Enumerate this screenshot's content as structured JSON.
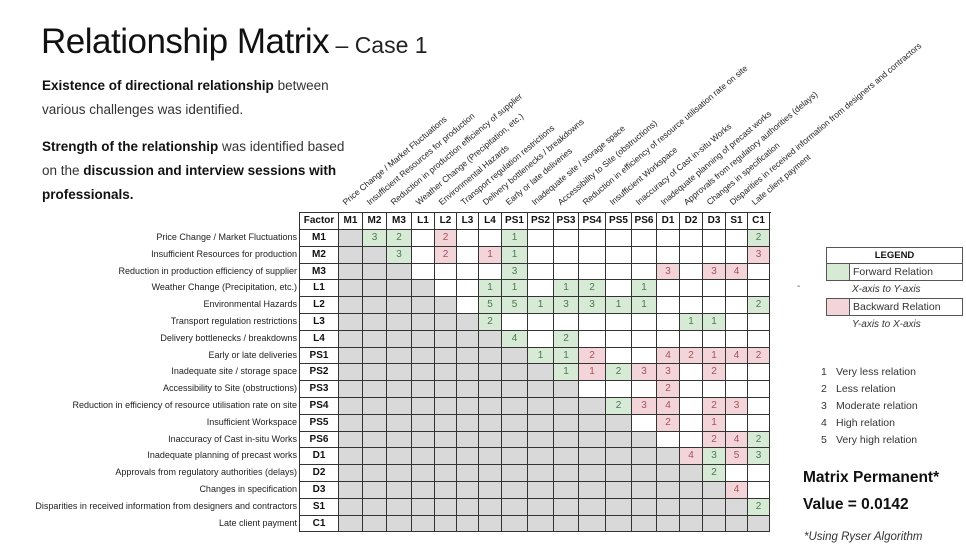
{
  "title": {
    "main": "Relationship Matrix",
    "sub": " – Case 1"
  },
  "intro": {
    "p1_bold": "Existence of directional relationship",
    "p1_rest": " between various challenges was identified.",
    "p2_bold": "Strength of the relationship",
    "p2_mid": " was identified based on the ",
    "p2_bold2": "discussion and interview sessions with professionals."
  },
  "matrix": {
    "corner": "Factor",
    "codes": [
      "M1",
      "M2",
      "M3",
      "L1",
      "L2",
      "L3",
      "L4",
      "PS1",
      "PS2",
      "PS3",
      "PS4",
      "PS5",
      "PS6",
      "D1",
      "D2",
      "D3",
      "S1",
      "C1"
    ],
    "labels": [
      "Price Change / Market Fluctuations",
      "Insufficient Resources for production",
      "Reduction in production efficiency of supplier",
      "Weather Change (Precipitation, etc.)",
      "Environmental Hazards",
      "Transport regulation restrictions",
      "Delivery bottlenecks / breakdowns",
      "Early or late deliveries",
      "Inadequate site / storage space",
      "Accessibility to Site (obstructions)",
      "Reduction in efficiency of resource utilisation rate on site",
      "Insufficient Workspace",
      "Inaccuracy of Cast in-situ Works",
      "Inadequate planning of precast works",
      "Approvals from regulatory authorities (delays)",
      "Changes in specification",
      "Disparities in received information from designers and contractors",
      "Late client payment"
    ],
    "cells": {
      "M1": {
        "M2": "3F",
        "M3": "2F",
        "L2": "2B",
        "PS1": "1F",
        "C1": "2F"
      },
      "M2": {
        "M3": "3F",
        "L2": "2B",
        "L4": "1B",
        "PS1": "1F",
        "C1": "3B"
      },
      "M3": {
        "PS1": "3F",
        "D1": "3B",
        "D3": "3B",
        "S1": "4B"
      },
      "L1": {
        "L4": "1F",
        "PS1": "1F",
        "PS3": "1F",
        "PS4": "2F",
        "PS6": "1F"
      },
      "L2": {
        "L4": "5F",
        "PS1": "5F",
        "PS2": "1F",
        "PS3": "3F",
        "PS4": "3F",
        "PS5": "1F",
        "PS6": "1F",
        "C1": "2F"
      },
      "L3": {
        "L4": "2F",
        "D2": "1F",
        "D3": "1F"
      },
      "L4": {
        "PS1": "4F",
        "PS3": "2F"
      },
      "PS1": {
        "PS2": "1F",
        "PS3": "1F",
        "PS4": "2B",
        "D1": "4B",
        "D2": "2B",
        "D3": "1B",
        "S1": "4B",
        "C1": "2B"
      },
      "PS2": {
        "PS3": "1F",
        "PS4": "1B",
        "PS5": "2F",
        "PS6": "3B",
        "D1": "3B",
        "D3": "2B"
      },
      "PS3": {
        "D1": "2B"
      },
      "PS4": {
        "PS5": "2F",
        "PS6": "3B",
        "D1": "4B",
        "D3": "2B",
        "S1": "3B"
      },
      "PS5": {
        "D1": "2B",
        "D3": "1B"
      },
      "PS6": {
        "D3": "2B",
        "S1": "4B",
        "C1": "2F"
      },
      "D1": {
        "D2": "4B",
        "D3": "3F",
        "S1": "5B",
        "C1": "3F"
      },
      "D2": {
        "D3": "2F"
      },
      "D3": {
        "S1": "4B"
      },
      "S1": {
        "C1": "2F"
      },
      "C1": {}
    }
  },
  "legend": {
    "title": "LEGEND",
    "forward": "Forward Relation",
    "forward_note": "X-axis to Y-axis",
    "backward": "Backward Relation",
    "backward_note": "Y-axis to X-axis",
    "dash": "-",
    "colors": {
      "forward": "#d7ead6",
      "backward": "#f3d4d8",
      "diagonal": "#d9d9d9"
    }
  },
  "scale": [
    {
      "n": "1",
      "label": "Very less relation"
    },
    {
      "n": "2",
      "label": "Less relation"
    },
    {
      "n": "3",
      "label": "Moderate relation"
    },
    {
      "n": "4",
      "label": "High relation"
    },
    {
      "n": "5",
      "label": "Very high relation"
    }
  ],
  "permanent": {
    "line1": "Matrix Permanent*",
    "line2": "Value = 0.0142",
    "note": "*Using Ryser Algorithm"
  }
}
